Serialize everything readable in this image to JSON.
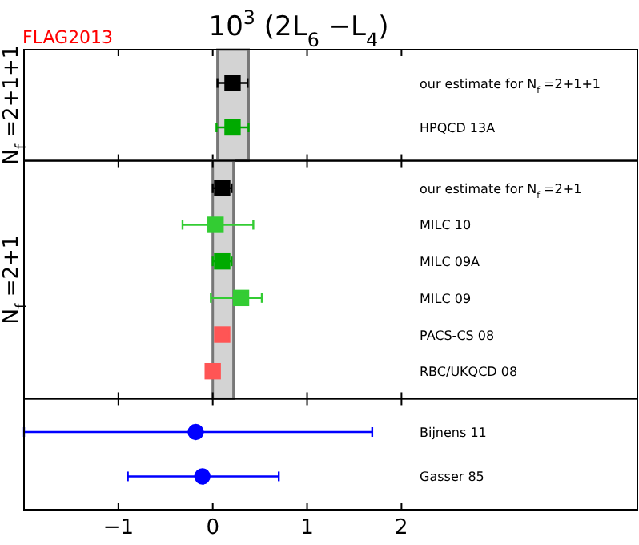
{
  "chart_data": [
    {
      "type": "scatter",
      "orientation": "horizontal",
      "title": "10$^{3}$ (2L$_{6}$ −L$_{4}$)",
      "annotations": [
        "FLAG2013"
      ],
      "ylabel": "N$_{f}$ =2+1+1",
      "categories": [
        "our estimate for N$_{f}$ =2+1+1",
        "HPQCD 13A"
      ],
      "xlim": [
        -2,
        4.5
      ],
      "xticks": [
        -1,
        0,
        1,
        2
      ],
      "tick_labels": "y",
      "grid": false,
      "marker": "square",
      "bands": [
        {
          "axis": "x",
          "from": 0.05,
          "to": 0.38,
          "color": "#d3d3d3"
        }
      ],
      "series": [
        {
          "color": "#000000",
          "values": [
            0.21,
            null
          ],
          "errors": [
            0.16,
            null
          ]
        },
        {
          "color": "#00aa00",
          "values": [
            null,
            0.21
          ],
          "errors": [
            null,
            0.17
          ]
        }
      ]
    },
    {
      "type": "scatter",
      "orientation": "horizontal",
      "ylabel": "N$_{f}$ =2+1",
      "categories": [
        "our estimate for N$_{f}$ =2+1",
        "MILC 10",
        "MILC 09A",
        "MILC 09",
        "PACS-CS 08",
        "RBC/UKQCD 08"
      ],
      "xlim": [
        -2,
        4.5
      ],
      "xticks": [
        -1,
        0,
        1,
        2
      ],
      "tick_labels": "y",
      "grid": false,
      "marker": "square",
      "bands": [
        {
          "axis": "x",
          "from": 0.0,
          "to": 0.22,
          "color": "#d3d3d3"
        }
      ],
      "series": [
        {
          "color": "#000000",
          "values": [
            0.1,
            null,
            null,
            null,
            null,
            null
          ],
          "errors": [
            0.1,
            null,
            null,
            null,
            null,
            null
          ]
        },
        {
          "color": "#00aa00",
          "values": [
            null,
            null,
            0.1,
            null,
            null,
            null
          ],
          "errors": [
            null,
            null,
            0.1,
            null,
            null,
            null
          ]
        },
        {
          "color": "#33cc33",
          "values": [
            null,
            0.03,
            null,
            0.3,
            null,
            null
          ],
          "errors": [
            null,
            [
              -0.32,
              0.43
            ],
            null,
            [
              -0.02,
              0.52
            ],
            null,
            null
          ]
        },
        {
          "color": "#ff5555",
          "values": [
            null,
            null,
            null,
            null,
            0.1,
            0.0
          ]
        }
      ]
    },
    {
      "type": "scatter",
      "orientation": "horizontal",
      "categories": [
        "Bijnens 11",
        "Gasser 85"
      ],
      "xlim": [
        -2,
        4.5
      ],
      "xticks": [
        -1,
        0,
        1,
        2
      ],
      "grid": false,
      "marker": "circle",
      "series": [
        {
          "color": "#0000ff",
          "values": [
            -0.18,
            -0.11
          ],
          "errors": [
            [
              -2,
              1.69
            ],
            [
              -0.9,
              0.7
            ]
          ]
        }
      ]
    }
  ]
}
